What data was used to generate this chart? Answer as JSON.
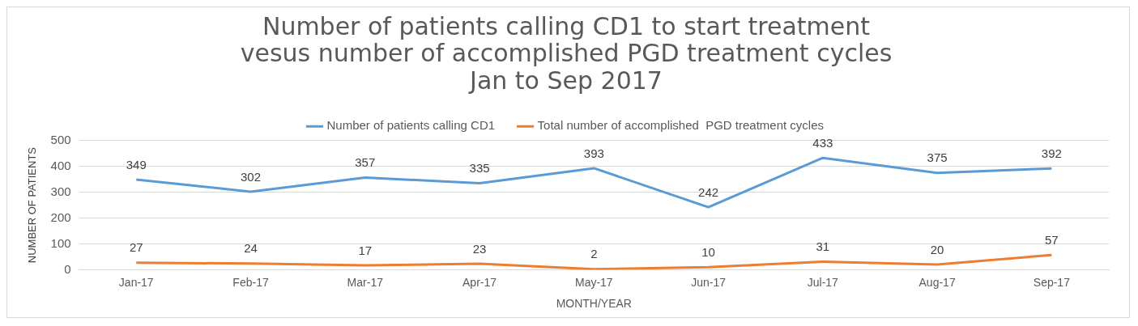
{
  "chart_data": {
    "type": "line",
    "title": "Number of patients calling CD1 to start treatment\nvesus number of accomplished PGD treatment cycles\nJan to Sep 2017",
    "xlabel": "MONTH/YEAR",
    "ylabel": "NUMBER OF PATIENTS",
    "categories": [
      "Jan-17",
      "Feb-17",
      "Mar-17",
      "Apr-17",
      "May-17",
      "Jun-17",
      "Jul-17",
      "Aug-17",
      "Sep-17"
    ],
    "series": [
      {
        "name": "Number of patients calling CD1",
        "color": "#5b9bd5",
        "values": [
          349,
          302,
          357,
          335,
          393,
          242,
          433,
          375,
          392
        ]
      },
      {
        "name": "Total number of accomplished  PGD treatment cycles",
        "color": "#ed7d31",
        "values": [
          27,
          24,
          17,
          23,
          2,
          10,
          31,
          20,
          57
        ]
      }
    ],
    "ylim": [
      0,
      500
    ],
    "yticks": [
      0,
      100,
      200,
      300,
      400,
      500
    ],
    "grid": "y",
    "legend": "top",
    "marker": "none",
    "line_style": "solid",
    "data_labels": true
  }
}
